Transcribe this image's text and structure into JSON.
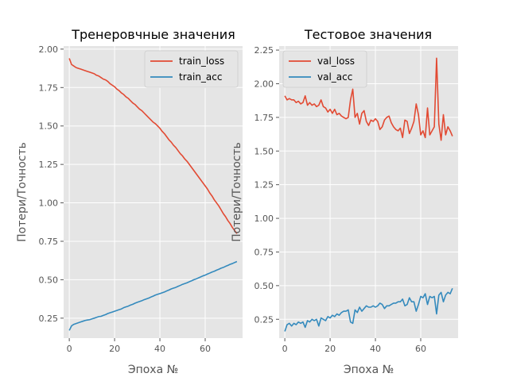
{
  "chart_data": [
    {
      "type": "line",
      "title": "Тренеровчные значения",
      "xlabel": "Эпоха №",
      "ylabel": "Потери/Точность",
      "xlim": [
        -2.5,
        76.5
      ],
      "ylim": [
        0.12,
        2.02
      ],
      "xticks": [
        0,
        20,
        40,
        60
      ],
      "yticks": [
        0.25,
        0.5,
        0.75,
        1.0,
        1.25,
        1.5,
        1.75,
        2.0
      ],
      "ytick_labels": [
        "0.25",
        "0.50",
        "0.75",
        "1.00",
        "1.25",
        "1.50",
        "1.75",
        "2.00"
      ],
      "grid": true,
      "legend_position": "top-right",
      "series": [
        {
          "name": "train_loss",
          "color": "#E24A33",
          "x": [
            0,
            1,
            2,
            3,
            4,
            5,
            6,
            7,
            8,
            9,
            10,
            11,
            12,
            13,
            14,
            15,
            16,
            17,
            18,
            19,
            20,
            21,
            22,
            23,
            24,
            25,
            26,
            27,
            28,
            29,
            30,
            31,
            32,
            33,
            34,
            35,
            36,
            37,
            38,
            39,
            40,
            41,
            42,
            43,
            44,
            45,
            46,
            47,
            48,
            49,
            50,
            51,
            52,
            53,
            54,
            55,
            56,
            57,
            58,
            59,
            60,
            61,
            62,
            63,
            64,
            65,
            66,
            67,
            68,
            69,
            70,
            71,
            72,
            73,
            74
          ],
          "values": [
            1.94,
            1.9,
            1.89,
            1.88,
            1.875,
            1.87,
            1.865,
            1.86,
            1.855,
            1.85,
            1.845,
            1.84,
            1.83,
            1.825,
            1.815,
            1.805,
            1.8,
            1.79,
            1.775,
            1.765,
            1.755,
            1.74,
            1.73,
            1.715,
            1.705,
            1.69,
            1.68,
            1.665,
            1.65,
            1.64,
            1.625,
            1.61,
            1.6,
            1.585,
            1.57,
            1.555,
            1.54,
            1.525,
            1.515,
            1.5,
            1.485,
            1.465,
            1.45,
            1.43,
            1.41,
            1.395,
            1.375,
            1.36,
            1.34,
            1.32,
            1.305,
            1.285,
            1.27,
            1.25,
            1.23,
            1.21,
            1.19,
            1.17,
            1.15,
            1.13,
            1.11,
            1.09,
            1.065,
            1.045,
            1.02,
            1.0,
            0.98,
            0.955,
            0.93,
            0.91,
            0.885,
            0.865,
            0.84,
            0.82,
            0.8
          ]
        },
        {
          "name": "train_acc",
          "color": "#348ABD",
          "x": [
            0,
            1,
            2,
            3,
            4,
            5,
            6,
            7,
            8,
            9,
            10,
            11,
            12,
            13,
            14,
            15,
            16,
            17,
            18,
            19,
            20,
            21,
            22,
            23,
            24,
            25,
            26,
            27,
            28,
            29,
            30,
            31,
            32,
            33,
            34,
            35,
            36,
            37,
            38,
            39,
            40,
            41,
            42,
            43,
            44,
            45,
            46,
            47,
            48,
            49,
            50,
            51,
            52,
            53,
            54,
            55,
            56,
            57,
            58,
            59,
            60,
            61,
            62,
            63,
            64,
            65,
            66,
            67,
            68,
            69,
            70,
            71,
            72,
            73,
            74
          ],
          "values": [
            0.17,
            0.2,
            0.21,
            0.215,
            0.22,
            0.225,
            0.23,
            0.235,
            0.238,
            0.24,
            0.245,
            0.25,
            0.255,
            0.26,
            0.262,
            0.268,
            0.273,
            0.28,
            0.285,
            0.29,
            0.295,
            0.3,
            0.305,
            0.31,
            0.318,
            0.323,
            0.328,
            0.335,
            0.34,
            0.347,
            0.353,
            0.358,
            0.363,
            0.37,
            0.375,
            0.38,
            0.387,
            0.393,
            0.4,
            0.405,
            0.41,
            0.415,
            0.42,
            0.427,
            0.433,
            0.44,
            0.445,
            0.45,
            0.457,
            0.463,
            0.47,
            0.475,
            0.48,
            0.487,
            0.493,
            0.5,
            0.505,
            0.512,
            0.518,
            0.525,
            0.53,
            0.537,
            0.543,
            0.55,
            0.555,
            0.562,
            0.568,
            0.575,
            0.58,
            0.587,
            0.593,
            0.6,
            0.605,
            0.612,
            0.618
          ]
        }
      ]
    },
    {
      "type": "line",
      "title": "Тестовое значения",
      "xlabel": "Эпоха №",
      "ylabel": "Потери/Точность",
      "xlim": [
        -2.5,
        76.5
      ],
      "ylim": [
        0.11,
        2.28
      ],
      "xticks": [
        0,
        20,
        40,
        60
      ],
      "yticks": [
        0.25,
        0.5,
        0.75,
        1.0,
        1.25,
        1.5,
        1.75,
        2.0,
        2.25
      ],
      "ytick_labels": [
        "0.25",
        "0.50",
        "0.75",
        "1.00",
        "1.25",
        "1.50",
        "1.75",
        "2.00",
        "2.25"
      ],
      "grid": true,
      "legend_position": "top-left",
      "series": [
        {
          "name": "val_loss",
          "color": "#E24A33",
          "x": [
            0,
            1,
            2,
            3,
            4,
            5,
            6,
            7,
            8,
            9,
            10,
            11,
            12,
            13,
            14,
            15,
            16,
            17,
            18,
            19,
            20,
            21,
            22,
            23,
            24,
            25,
            26,
            27,
            28,
            29,
            30,
            31,
            32,
            33,
            34,
            35,
            36,
            37,
            38,
            39,
            40,
            41,
            42,
            43,
            44,
            45,
            46,
            47,
            48,
            49,
            50,
            51,
            52,
            53,
            54,
            55,
            56,
            57,
            58,
            59,
            60,
            61,
            62,
            63,
            64,
            65,
            66,
            67,
            68,
            69,
            70,
            71,
            72,
            73,
            74
          ],
          "values": [
            1.91,
            1.88,
            1.89,
            1.88,
            1.88,
            1.86,
            1.87,
            1.85,
            1.86,
            1.91,
            1.84,
            1.86,
            1.84,
            1.85,
            1.83,
            1.84,
            1.88,
            1.83,
            1.82,
            1.79,
            1.81,
            1.78,
            1.81,
            1.77,
            1.78,
            1.76,
            1.75,
            1.74,
            1.75,
            1.88,
            1.96,
            1.75,
            1.78,
            1.7,
            1.78,
            1.8,
            1.72,
            1.69,
            1.73,
            1.72,
            1.74,
            1.72,
            1.66,
            1.68,
            1.73,
            1.75,
            1.76,
            1.71,
            1.68,
            1.66,
            1.65,
            1.67,
            1.6,
            1.73,
            1.72,
            1.63,
            1.67,
            1.72,
            1.85,
            1.77,
            1.62,
            1.65,
            1.6,
            1.82,
            1.62,
            1.65,
            1.68,
            2.19,
            1.7,
            1.58,
            1.77,
            1.62,
            1.68,
            1.65,
            1.61
          ]
        },
        {
          "name": "val_acc",
          "color": "#348ABD",
          "x": [
            0,
            1,
            2,
            3,
            4,
            5,
            6,
            7,
            8,
            9,
            10,
            11,
            12,
            13,
            14,
            15,
            16,
            17,
            18,
            19,
            20,
            21,
            22,
            23,
            24,
            25,
            26,
            27,
            28,
            29,
            30,
            31,
            32,
            33,
            34,
            35,
            36,
            37,
            38,
            39,
            40,
            41,
            42,
            43,
            44,
            45,
            46,
            47,
            48,
            49,
            50,
            51,
            52,
            53,
            54,
            55,
            56,
            57,
            58,
            59,
            60,
            61,
            62,
            63,
            64,
            65,
            66,
            67,
            68,
            69,
            70,
            71,
            72,
            73,
            74
          ],
          "values": [
            0.16,
            0.21,
            0.22,
            0.2,
            0.22,
            0.21,
            0.23,
            0.22,
            0.23,
            0.19,
            0.24,
            0.23,
            0.25,
            0.24,
            0.25,
            0.2,
            0.26,
            0.25,
            0.24,
            0.27,
            0.26,
            0.28,
            0.27,
            0.29,
            0.28,
            0.3,
            0.31,
            0.31,
            0.32,
            0.23,
            0.22,
            0.32,
            0.3,
            0.34,
            0.31,
            0.33,
            0.35,
            0.34,
            0.34,
            0.35,
            0.34,
            0.35,
            0.37,
            0.36,
            0.33,
            0.35,
            0.35,
            0.36,
            0.37,
            0.37,
            0.38,
            0.38,
            0.4,
            0.35,
            0.36,
            0.41,
            0.38,
            0.38,
            0.31,
            0.36,
            0.42,
            0.41,
            0.44,
            0.36,
            0.42,
            0.41,
            0.42,
            0.29,
            0.43,
            0.45,
            0.38,
            0.43,
            0.45,
            0.44,
            0.48
          ]
        }
      ]
    }
  ]
}
